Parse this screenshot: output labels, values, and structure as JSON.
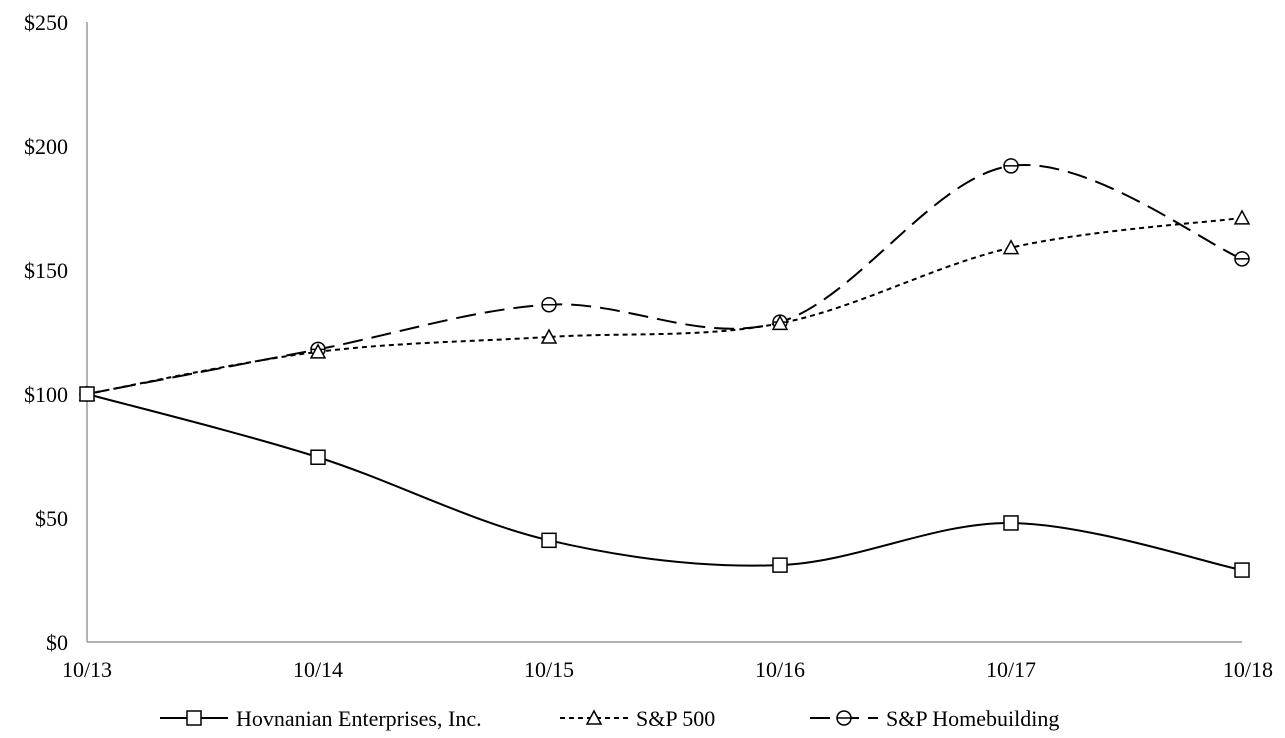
{
  "chart_data": {
    "type": "line",
    "categories": [
      "10/13",
      "10/14",
      "10/15",
      "10/16",
      "10/17",
      "10/18"
    ],
    "y_ticks": [
      "$0",
      "$50",
      "$100",
      "$150",
      "$200",
      "$250"
    ],
    "ylim": [
      0,
      250
    ],
    "grid": false,
    "legend_position": "bottom",
    "series": [
      {
        "name": "Hovnanian Enterprises, Inc.",
        "values": [
          100,
          74.5,
          41,
          31,
          48,
          29
        ],
        "marker": "square",
        "dash": "solid"
      },
      {
        "name": "S&P 500",
        "values": [
          100,
          117,
          123,
          128.5,
          159,
          171
        ],
        "marker": "triangle",
        "dash": "dotted"
      },
      {
        "name": "S&P Homebuilding",
        "values": [
          100,
          118,
          136,
          129,
          192,
          154.5
        ],
        "marker": "circle",
        "dash": "dashed"
      }
    ]
  }
}
